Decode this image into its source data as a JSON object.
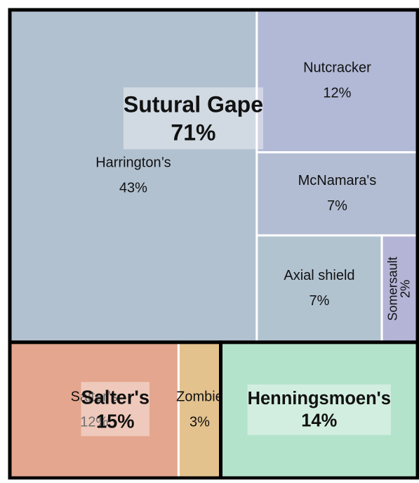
{
  "chart_data": {
    "type": "treemap",
    "nodes": [
      {
        "name": "Sutural Gape",
        "value": 71,
        "value_label": "71%",
        "children": [
          {
            "name": "Harrington’s",
            "value": 43,
            "value_label": "43%",
            "color": "#b2c1d0"
          },
          {
            "name": "Nutcracker",
            "value": 12,
            "value_label": "12%",
            "color": "#b2b9d6"
          },
          {
            "name": "McNamara's",
            "value": 7,
            "value_label": "7%",
            "color": "#b2bdd3"
          },
          {
            "name": "Axial shield",
            "value": 7,
            "value_label": "7%",
            "color": "#b2c3d0"
          },
          {
            "name": "Somersault",
            "value": 2,
            "value_label": "2%",
            "color": "#b3b4d6"
          }
        ]
      },
      {
        "name": "Salter's",
        "value": 15,
        "value_label": "15%",
        "children": [
          {
            "name": "Salter’s",
            "value": 12,
            "value_label": "12%",
            "color": "#e4a68e"
          },
          {
            "name": "Zombie",
            "value": 3,
            "value_label": "3%",
            "color": "#e4c28e"
          }
        ]
      },
      {
        "name": "Henningsmoen's",
        "value": 14,
        "value_label": "14%",
        "color": "#b4e3cb"
      }
    ]
  }
}
